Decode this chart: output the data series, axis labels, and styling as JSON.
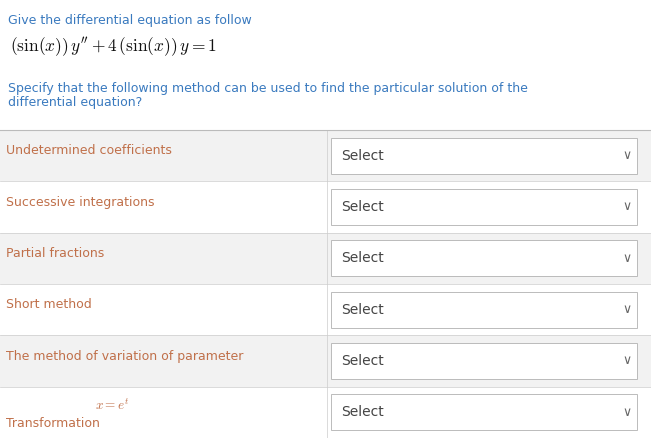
{
  "title_line1": "Give the differential equation as follow",
  "equation": "$(\\sin(x))\\, y'' + 4\\,(\\sin(x))\\, y = 1$",
  "question_line1": "Specify that the following method can be used to find the particular solution of the",
  "question_line2": "differential equation?",
  "methods": [
    "Undetermined coefficients",
    "Successive integrations",
    "Partial fractions",
    "Short method",
    "The method of variation of parameter",
    "Transformation"
  ],
  "transformation_formula": "$x = e^t$",
  "dropdown_text": "Select",
  "bg_color": "#ffffff",
  "row_bg_even": "#f2f2f2",
  "row_bg_odd": "#ffffff",
  "title_color": "#3a7abf",
  "equation_color": "#111111",
  "question_color": "#3a7abf",
  "method_color": "#c0704a",
  "dropdown_border": "#bbbbbb",
  "dropdown_bg": "#ffffff",
  "dropdown_text_color": "#444444",
  "separator_color": "#cccccc",
  "header_separator_color": "#bbbbbb",
  "figsize": [
    6.51,
    4.38
  ],
  "dpi": 100
}
